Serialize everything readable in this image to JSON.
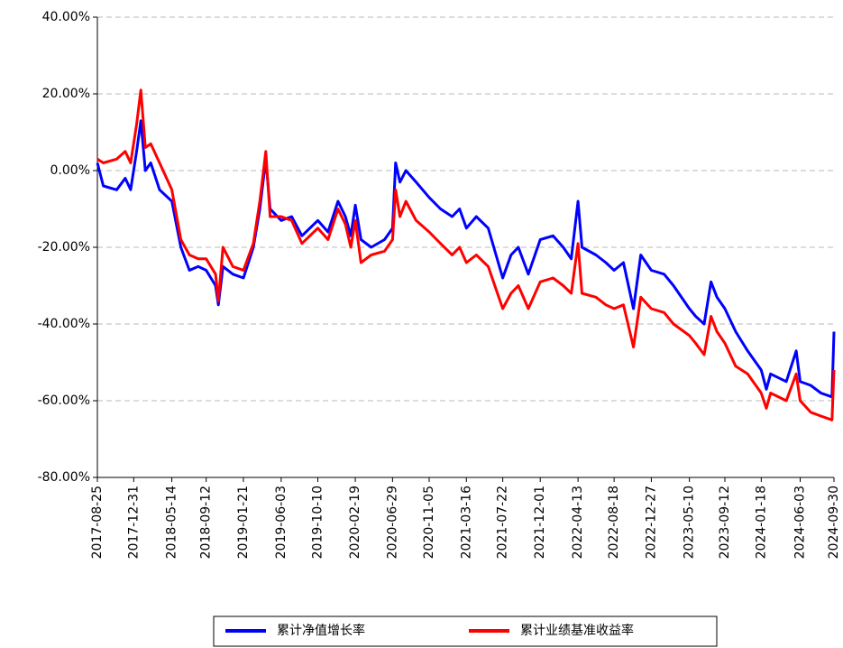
{
  "chart_data": {
    "type": "line",
    "x": [
      "2017-08-25",
      "2017-09-15",
      "2017-11-01",
      "2017-12-01",
      "2017-12-20",
      "2018-01-10",
      "2018-01-25",
      "2018-02-10",
      "2018-03-01",
      "2018-04-01",
      "2018-05-14",
      "2018-06-15",
      "2018-07-15",
      "2018-08-15",
      "2018-09-12",
      "2018-10-15",
      "2018-10-25",
      "2018-11-10",
      "2018-12-15",
      "2019-01-21",
      "2019-02-25",
      "2019-03-20",
      "2019-04-10",
      "2019-04-25",
      "2019-06-03",
      "2019-07-10",
      "2019-08-15",
      "2019-10-10",
      "2019-11-15",
      "2019-12-20",
      "2020-01-15",
      "2020-02-03",
      "2020-02-19",
      "2020-03-10",
      "2020-04-15",
      "2020-06-01",
      "2020-06-29",
      "2020-07-10",
      "2020-07-25",
      "2020-08-15",
      "2020-09-20",
      "2020-11-05",
      "2020-12-15",
      "2021-01-25",
      "2021-02-20",
      "2021-03-16",
      "2021-04-20",
      "2021-06-01",
      "2021-07-22",
      "2021-08-20",
      "2021-09-15",
      "2021-10-20",
      "2021-12-01",
      "2022-01-15",
      "2022-02-20",
      "2022-03-20",
      "2022-04-13",
      "2022-04-27",
      "2022-06-15",
      "2022-07-20",
      "2022-08-18",
      "2022-09-20",
      "2022-10-25",
      "2022-11-20",
      "2022-12-27",
      "2023-02-10",
      "2023-03-15",
      "2023-05-10",
      "2023-06-01",
      "2023-07-01",
      "2023-07-25",
      "2023-08-15",
      "2023-09-12",
      "2023-10-20",
      "2023-12-01",
      "2024-01-18",
      "2024-02-05",
      "2024-02-20",
      "2024-04-15",
      "2024-05-20",
      "2024-06-03",
      "2024-07-10",
      "2024-08-15",
      "2024-09-23",
      "2024-09-30"
    ],
    "series": [
      {
        "name": "累计净值增长率",
        "color": "#0000ff",
        "values": [
          2,
          -4,
          -5,
          -2,
          -5,
          5,
          13,
          0,
          2,
          -5,
          -8,
          -20,
          -26,
          -25,
          -26,
          -30,
          -35,
          -25,
          -27,
          -28,
          -20,
          -10,
          3,
          -10,
          -13,
          -12,
          -17,
          -13,
          -16,
          -8,
          -12,
          -17,
          -9,
          -18,
          -20,
          -18,
          -15,
          2,
          -3,
          0,
          -3,
          -7,
          -10,
          -12,
          -10,
          -15,
          -12,
          -15,
          -28,
          -22,
          -20,
          -27,
          -18,
          -17,
          -20,
          -23,
          -8,
          -20,
          -22,
          -24,
          -26,
          -24,
          -36,
          -22,
          -26,
          -27,
          -30,
          -36,
          -38,
          -40,
          -29,
          -33,
          -36,
          -42,
          -47,
          -52,
          -57,
          -53,
          -55,
          -47,
          -55,
          -56,
          -58,
          -59,
          -42
        ]
      },
      {
        "name": "累计业绩基准收益率",
        "color": "#ff0000",
        "values": [
          3,
          2,
          3,
          5,
          2,
          12,
          21,
          6,
          7,
          2,
          -5,
          -18,
          -22,
          -23,
          -23,
          -27,
          -34,
          -20,
          -25,
          -26,
          -19,
          -8,
          5,
          -12,
          -12,
          -13,
          -19,
          -15,
          -18,
          -10,
          -14,
          -20,
          -13,
          -24,
          -22,
          -21,
          -18,
          -5,
          -12,
          -8,
          -13,
          -16,
          -19,
          -22,
          -20,
          -24,
          -22,
          -25,
          -36,
          -32,
          -30,
          -36,
          -29,
          -28,
          -30,
          -32,
          -19,
          -32,
          -33,
          -35,
          -36,
          -35,
          -46,
          -33,
          -36,
          -37,
          -40,
          -43,
          -45,
          -48,
          -38,
          -42,
          -45,
          -51,
          -53,
          -58,
          -62,
          -58,
          -60,
          -53,
          -60,
          -63,
          -64,
          -65,
          -52
        ]
      }
    ],
    "xlim": [
      "2017-08-25",
      "2024-09-30"
    ],
    "xticks": [
      "2017-08-25",
      "2017-12-31",
      "2018-05-14",
      "2018-09-12",
      "2019-01-21",
      "2019-06-03",
      "2019-10-10",
      "2020-02-19",
      "2020-06-29",
      "2020-11-05",
      "2021-03-16",
      "2021-07-22",
      "2021-12-01",
      "2022-04-13",
      "2022-08-18",
      "2022-12-27",
      "2023-05-10",
      "2023-09-12",
      "2024-01-18",
      "2024-06-03",
      "2024-09-30"
    ],
    "ylim": [
      -80,
      40
    ],
    "yticks": [
      {
        "value": -80,
        "label": "-80.00%"
      },
      {
        "value": -60,
        "label": "-60.00%"
      },
      {
        "value": -40,
        "label": "-40.00%"
      },
      {
        "value": -20,
        "label": "-20.00%"
      },
      {
        "value": 0,
        "label": "0.00%"
      },
      {
        "value": 20,
        "label": "20.00%"
      },
      {
        "value": 40,
        "label": "40.00%"
      }
    ],
    "grid": true,
    "legend": "bottom"
  }
}
